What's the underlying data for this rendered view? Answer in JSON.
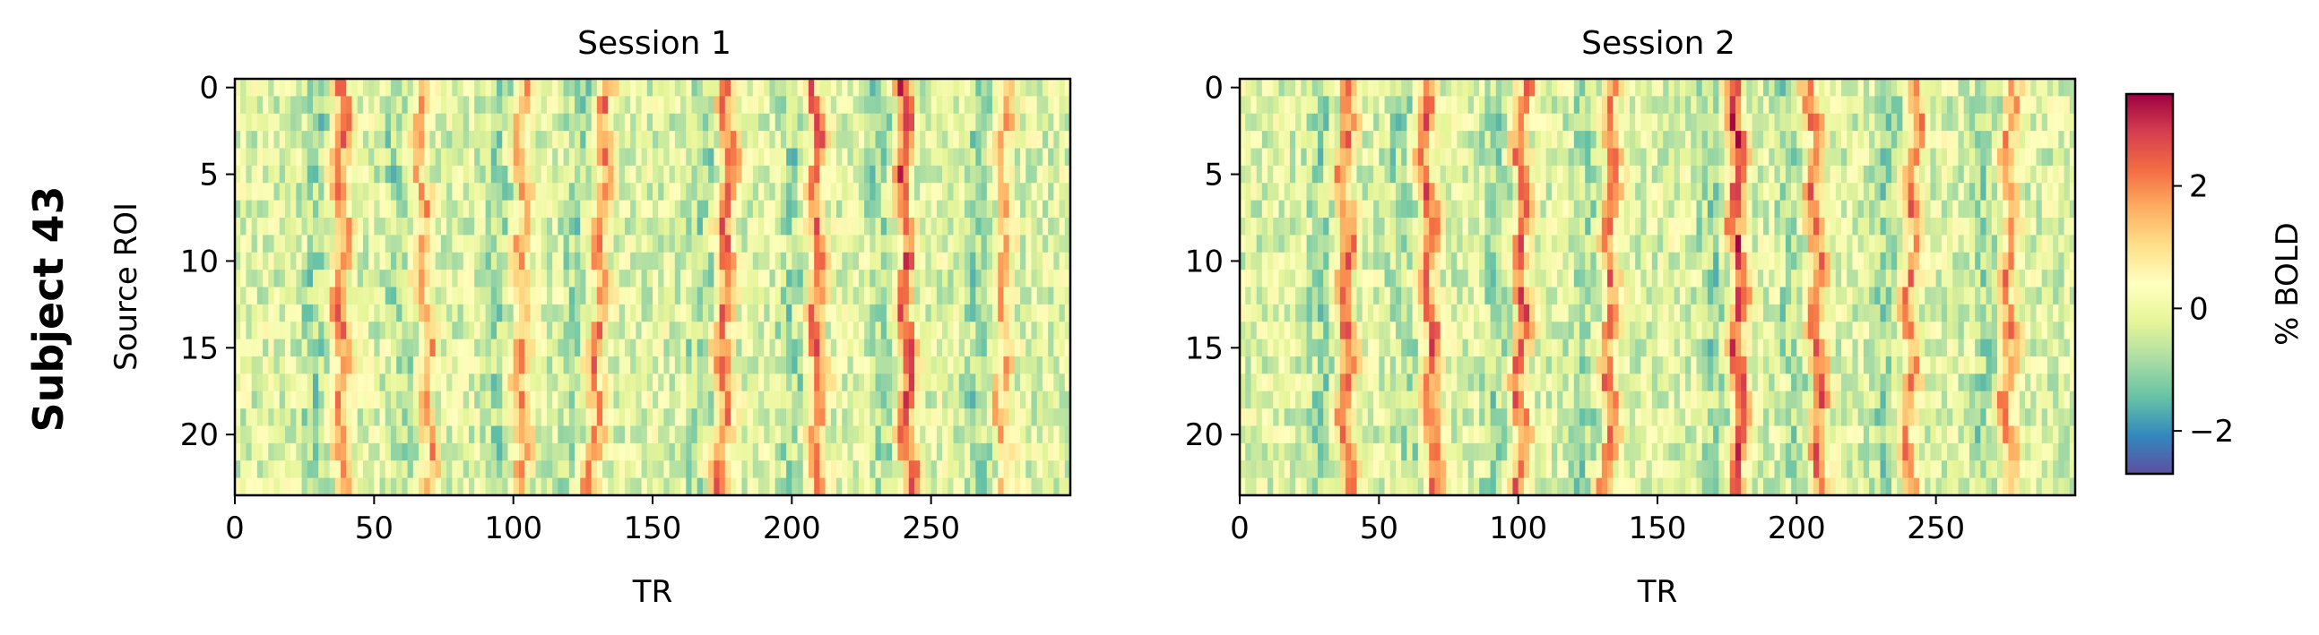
{
  "figure": {
    "row_label": "Subject 43"
  },
  "chart_data": [
    {
      "type": "heatmap",
      "title": "Session 1",
      "xlabel": "TR",
      "ylabel": "Source ROI",
      "n_rows": 24,
      "n_cols": 300,
      "xlim": [
        0,
        299
      ],
      "ylim": [
        23.5,
        -0.5
      ],
      "x_ticks": [
        0,
        50,
        100,
        150,
        200,
        250
      ],
      "y_ticks": [
        0,
        5,
        10,
        15,
        20
      ],
      "peak_trs": [
        37,
        67,
        102,
        130,
        175,
        208,
        240,
        275
      ],
      "peak_drift_per_roi": [
        0,
        0.25,
        -0.1,
        -0.4,
        -0.2,
        0.1,
        0.15,
        -0.05
      ],
      "peak_amplitude": [
        1.7,
        1.4,
        1.5,
        1.6,
        1.9,
        1.8,
        2.1,
        1.2
      ],
      "notes": "Vertical bands of elevated %BOLD recurring every ~33 TRs across all ROIs"
    },
    {
      "type": "heatmap",
      "title": "Session 2",
      "xlabel": "TR",
      "ylabel": "",
      "n_rows": 24,
      "n_cols": 300,
      "xlim": [
        0,
        299
      ],
      "ylim": [
        23.5,
        -0.5
      ],
      "x_ticks": [
        0,
        50,
        100,
        150,
        200,
        250
      ],
      "y_ticks": [
        0,
        5,
        10,
        15,
        20
      ],
      "peak_trs": [
        37,
        67,
        100,
        132,
        178,
        206,
        240,
        275
      ],
      "peak_drift_per_roi": [
        0,
        0.25,
        -0.1,
        -0.1,
        0.1,
        0.2,
        -0.2,
        -0.05
      ],
      "peak_amplitude": [
        1.8,
        2.0,
        1.9,
        1.7,
        2.3,
        1.9,
        1.6,
        1.5
      ]
    }
  ],
  "colorbar": {
    "label": "% BOLD",
    "colormap": "Spectral_r",
    "vmin": -2.7,
    "vmax": 3.5,
    "ticks": [
      -2,
      0,
      2
    ],
    "tick_labels": [
      "−2",
      "0",
      "2"
    ]
  }
}
